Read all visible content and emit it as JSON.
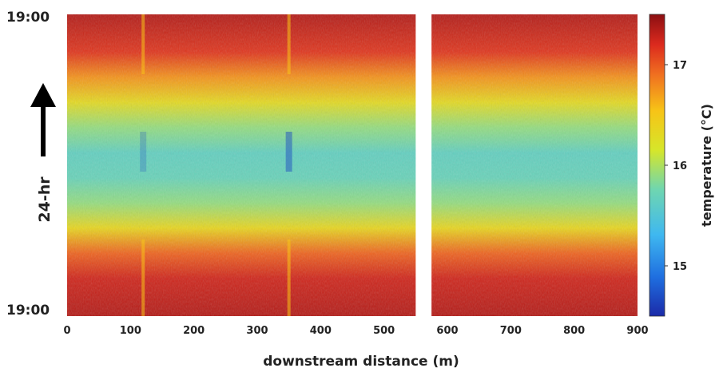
{
  "chart_data": {
    "type": "heatmap",
    "xlabel": "downstream distance (m)",
    "colorbar_label": "temperature (°C)",
    "x_range": [
      0,
      900
    ],
    "x_ticks": [
      0,
      100,
      200,
      300,
      400,
      500,
      600,
      700,
      800,
      900
    ],
    "x_gap_m": [
      550,
      575
    ],
    "y_tick_labels": [
      "19:00",
      "19:00"
    ],
    "time_direction_label": "24-hr",
    "color_range": [
      14.5,
      17.5
    ],
    "colorbar_ticks": [
      15,
      16,
      17
    ],
    "colormap": "jet",
    "temperature_profile_over_24hr": {
      "hours_after_1900": [
        0,
        3,
        5,
        7,
        9,
        11,
        13,
        15,
        17,
        19,
        21,
        24
      ],
      "temperature_c": [
        17.35,
        17.25,
        16.95,
        16.35,
        15.9,
        15.7,
        15.65,
        15.9,
        16.3,
        16.75,
        17.15,
        17.35
      ]
    },
    "anomalies_m": [
      120,
      350
    ]
  }
}
